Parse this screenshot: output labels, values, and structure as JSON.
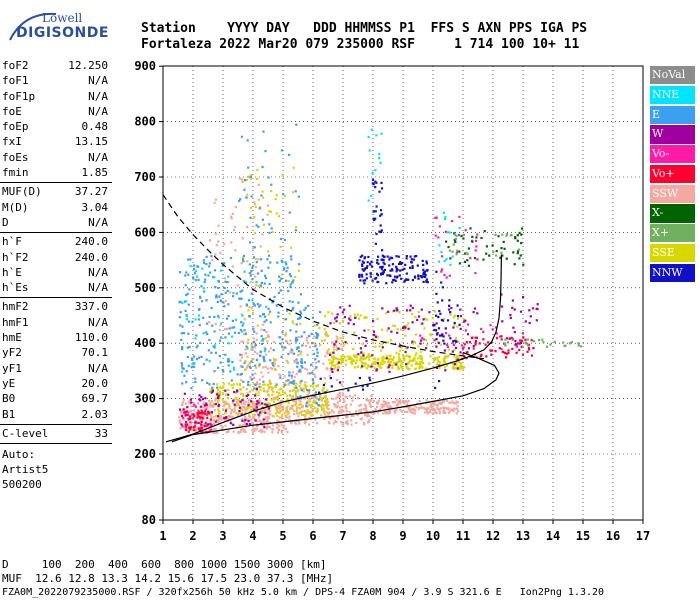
{
  "logo": {
    "line1": "Lowell",
    "line2": "DIGISONDE"
  },
  "header": {
    "row1": "Station    YYYY DAY   DDD HHMMSS P1  FFS S AXN PPS IGA PS",
    "row2": "Fortaleza 2022 Mar20 079 235000 RSF     1 714 100 10+ 11"
  },
  "params_group1": [
    {
      "k": "foF2",
      "v": "12.250"
    },
    {
      "k": "foF1",
      "v": "N/A"
    },
    {
      "k": "foF1p",
      "v": "N/A"
    },
    {
      "k": "foE",
      "v": "N/A"
    },
    {
      "k": "foEp",
      "v": "0.48"
    },
    {
      "k": "fxI",
      "v": "13.15"
    },
    {
      "k": "foEs",
      "v": "N/A"
    },
    {
      "k": "fmin",
      "v": "1.85"
    }
  ],
  "params_group2": [
    {
      "k": "MUF(D)",
      "v": "37.27"
    },
    {
      "k": "M(D)",
      "v": "3.04"
    },
    {
      "k": "D",
      "v": "N/A"
    }
  ],
  "params_group3": [
    {
      "k": "h`F",
      "v": "240.0"
    },
    {
      "k": "h`F2",
      "v": "240.0"
    },
    {
      "k": "h`E",
      "v": "N/A"
    },
    {
      "k": "h`Es",
      "v": "N/A"
    }
  ],
  "params_group4": [
    {
      "k": "hmF2",
      "v": "337.0"
    },
    {
      "k": "hmF1",
      "v": "N/A"
    },
    {
      "k": "hmE",
      "v": "110.0"
    },
    {
      "k": "yF2",
      "v": "70.1"
    },
    {
      "k": "yF1",
      "v": "N/A"
    },
    {
      "k": "yE",
      "v": "20.0"
    },
    {
      "k": "B0",
      "v": "69.7"
    },
    {
      "k": "B1",
      "v": "2.03"
    }
  ],
  "params_group5": [
    {
      "k": "C-level",
      "v": "33"
    }
  ],
  "auto": {
    "line1": "Auto:",
    "line2": "Artist5",
    "line3": "500200"
  },
  "legend": [
    {
      "label": "NoVal",
      "color": "#8c8c8c"
    },
    {
      "label": "NNE",
      "color": "#00e5ff"
    },
    {
      "label": "E",
      "color": "#3ba0f0"
    },
    {
      "label": "W",
      "color": "#a000a0"
    },
    {
      "label": "Vo-",
      "color": "#ff1aa8"
    },
    {
      "label": "Vo+",
      "color": "#ff0030"
    },
    {
      "label": "SSW",
      "color": "#f5a8a0"
    },
    {
      "label": "X-",
      "color": "#006400"
    },
    {
      "label": "X+",
      "color": "#70b060"
    },
    {
      "label": "SSE",
      "color": "#d8d800"
    },
    {
      "label": "NNW",
      "color": "#1010c8"
    }
  ],
  "bottom": {
    "line1": "D     100  200  400  600  800 1000 1500 3000 [km]",
    "line2": "MUF  12.6 12.8 13.3 14.2 15.6 17.5 23.0 37.3 [MHz]",
    "line3": "FZA0M_2022079235000.RSF / 320fx256h 50 kHz 5.0 km / DPS-4 FZA0M 904 / 3.9 S 321.6 E   Ion2Png 1.3.20"
  },
  "chart_data": {
    "type": "scatter",
    "xlim": [
      1,
      17
    ],
    "ylim": [
      80,
      900
    ],
    "x_ticks": [
      1,
      2,
      3,
      4,
      5,
      6,
      7,
      8,
      9,
      10,
      11,
      12,
      13,
      14,
      15,
      16,
      17
    ],
    "y_ticks": [
      80,
      200,
      300,
      400,
      500,
      600,
      700,
      800,
      900
    ],
    "grid": true,
    "clusters": [
      {
        "name": "SSW",
        "x": [
          1.5,
          5.2
        ],
        "y": [
          240,
          300
        ],
        "color": "#f5a8a0",
        "n": 380
      },
      {
        "name": "SSW",
        "x": [
          5.2,
          8.0
        ],
        "y": [
          255,
          310
        ],
        "color": "#f5a8a0",
        "n": 220
      },
      {
        "name": "SSW",
        "x": [
          8.0,
          10.8
        ],
        "y": [
          275,
          300
        ],
        "color": "#f5a8a0",
        "n": 180
      },
      {
        "name": "SSW",
        "x": [
          3.5,
          7.0
        ],
        "y": [
          300,
          420
        ],
        "color": "#f5a8a0",
        "n": 200
      },
      {
        "name": "SSW",
        "x": [
          2.5,
          4.5
        ],
        "y": [
          400,
          700
        ],
        "color": "#f5a8a0",
        "n": 60
      },
      {
        "name": "SSE",
        "x": [
          2.5,
          6.5
        ],
        "y": [
          270,
          330
        ],
        "color": "#d8d800",
        "n": 230
      },
      {
        "name": "SSE",
        "x": [
          6.5,
          11.0
        ],
        "y": [
          355,
          380
        ],
        "color": "#d8d800",
        "n": 260
      },
      {
        "name": "SSE",
        "x": [
          3.5,
          5.6
        ],
        "y": [
          300,
          720
        ],
        "color": "#d8d800",
        "n": 80
      },
      {
        "name": "SSE",
        "x": [
          6.0,
          11.0
        ],
        "y": [
          380,
          460
        ],
        "color": "#d8d800",
        "n": 110
      },
      {
        "name": "E",
        "x": [
          1.5,
          5.6
        ],
        "y": [
          320,
          560
        ],
        "color": "#3ba0f0",
        "n": 340
      },
      {
        "name": "E",
        "x": [
          5.4,
          6.2
        ],
        "y": [
          280,
          470
        ],
        "color": "#3ba0f0",
        "n": 60
      },
      {
        "name": "E",
        "x": [
          3.5,
          5.5
        ],
        "y": [
          520,
          800
        ],
        "color": "#3ba0f0",
        "n": 45
      },
      {
        "name": "NNE",
        "x": [
          1.5,
          4.5
        ],
        "y": [
          350,
          560
        ],
        "color": "#00e5ff",
        "n": 40
      },
      {
        "name": "NNE",
        "x": [
          7.8,
          8.3
        ],
        "y": [
          620,
          790
        ],
        "color": "#00e5ff",
        "n": 15
      },
      {
        "name": "NNE",
        "x": [
          10.1,
          10.9
        ],
        "y": [
          540,
          640
        ],
        "color": "#00e5ff",
        "n": 15
      },
      {
        "name": "W",
        "x": [
          1.5,
          4.5
        ],
        "y": [
          250,
          320
        ],
        "color": "#a000a0",
        "n": 90
      },
      {
        "name": "W",
        "x": [
          6.5,
          11.5
        ],
        "y": [
          350,
          470
        ],
        "color": "#a000a0",
        "n": 120
      },
      {
        "name": "W",
        "x": [
          12.2,
          13.5
        ],
        "y": [
          390,
          490
        ],
        "color": "#a000a0",
        "n": 30
      },
      {
        "name": "Vo-",
        "x": [
          1.6,
          2.6
        ],
        "y": [
          240,
          290
        ],
        "color": "#ff1aa8",
        "n": 30
      },
      {
        "name": "Vo-",
        "x": [
          10.0,
          11.6
        ],
        "y": [
          520,
          630
        ],
        "color": "#ff1aa8",
        "n": 25
      },
      {
        "name": "Vo-",
        "x": [
          9.5,
          13.0
        ],
        "y": [
          380,
          440
        ],
        "color": "#ff1aa8",
        "n": 30
      },
      {
        "name": "Vo+",
        "x": [
          1.7,
          2.6
        ],
        "y": [
          240,
          280
        ],
        "color": "#ff0030",
        "n": 55
      },
      {
        "name": "Vo+",
        "x": [
          11.0,
          13.3
        ],
        "y": [
          375,
          415
        ],
        "color": "#ff0030",
        "n": 55
      },
      {
        "name": "NNW",
        "x": [
          7.5,
          9.8
        ],
        "y": [
          510,
          560
        ],
        "color": "#1010c8",
        "n": 150
      },
      {
        "name": "NNW",
        "x": [
          10.0,
          10.9
        ],
        "y": [
          400,
          480
        ],
        "color": "#1010c8",
        "n": 25
      },
      {
        "name": "NNW",
        "x": [
          7.9,
          8.3
        ],
        "y": [
          560,
          700
        ],
        "color": "#1010c8",
        "n": 25
      },
      {
        "name": "NNW",
        "x": [
          6.0,
          8.0
        ],
        "y": [
          310,
          340
        ],
        "color": "#1010c8",
        "n": 15
      },
      {
        "name": "NNW",
        "x": [
          10.0,
          10.3
        ],
        "y": [
          320,
          560
        ],
        "color": "#1010c8",
        "n": 15
      },
      {
        "name": "X-",
        "x": [
          10.3,
          13.0
        ],
        "y": [
          540,
          610
        ],
        "color": "#006400",
        "n": 50
      },
      {
        "name": "X+",
        "x": [
          12.3,
          15.0
        ],
        "y": [
          395,
          410
        ],
        "color": "#70b060",
        "n": 25
      },
      {
        "name": "X+",
        "x": [
          10.5,
          13.0
        ],
        "y": [
          560,
          600
        ],
        "color": "#70b060",
        "n": 20
      }
    ],
    "curves": {
      "profile": [
        [
          1.1,
          222
        ],
        [
          1.5,
          228
        ],
        [
          2.0,
          236
        ],
        [
          3.0,
          257
        ],
        [
          4.0,
          277
        ],
        [
          5.0,
          294
        ],
        [
          6.0,
          306
        ],
        [
          7.0,
          317
        ],
        [
          8.0,
          328
        ],
        [
          9.0,
          341
        ],
        [
          10.0,
          355
        ],
        [
          10.8,
          368
        ],
        [
          11.3,
          378
        ],
        [
          11.7,
          388
        ],
        [
          11.95,
          402
        ],
        [
          12.1,
          420
        ],
        [
          12.2,
          445
        ],
        [
          12.25,
          480
        ],
        [
          12.27,
          520
        ],
        [
          12.28,
          560
        ]
      ],
      "trace": [
        [
          1.3,
          222
        ],
        [
          2.0,
          235
        ],
        [
          4.0,
          252
        ],
        [
          6.0,
          264
        ],
        [
          8.0,
          276
        ],
        [
          9.0,
          285
        ],
        [
          10.0,
          295
        ],
        [
          11.0,
          305
        ],
        [
          11.7,
          318
        ],
        [
          12.1,
          334
        ],
        [
          12.2,
          346
        ],
        [
          12.05,
          360
        ],
        [
          11.5,
          373
        ],
        [
          11.0,
          383
        ]
      ],
      "muf_dashed": [
        [
          1.0,
          668
        ],
        [
          1.5,
          628
        ],
        [
          2.0,
          596
        ],
        [
          2.5,
          568
        ],
        [
          3.0,
          542
        ],
        [
          4.0,
          497
        ],
        [
          5.0,
          465
        ],
        [
          6.0,
          440
        ],
        [
          7.0,
          420
        ],
        [
          8.0,
          406
        ],
        [
          9.0,
          395
        ],
        [
          10.0,
          385
        ],
        [
          11.0,
          377
        ],
        [
          11.7,
          372
        ]
      ]
    }
  }
}
